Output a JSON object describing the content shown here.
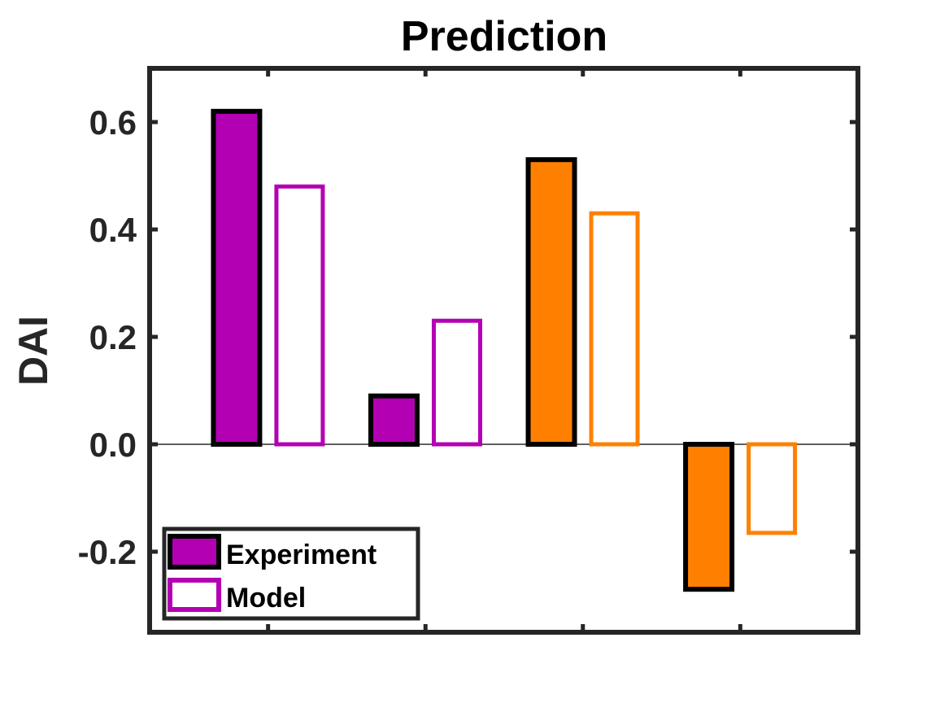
{
  "chart_data": {
    "type": "bar",
    "title": "Prediction",
    "xlabel": "",
    "ylabel": "DAI",
    "ylim": [
      -0.35,
      0.7
    ],
    "yticks": [
      -0.2,
      0.0,
      0.2,
      0.4,
      0.6
    ],
    "ytick_labels": [
      "-0.2",
      "0.0",
      "0.2",
      "0.4",
      "0.6"
    ],
    "xtick_count": 4,
    "grid": false,
    "legend": {
      "placement": "bottom-left",
      "entries": [
        {
          "name": "Experiment",
          "style": "filled"
        },
        {
          "name": "Model",
          "style": "outline"
        }
      ]
    },
    "series": [
      {
        "name": "Experiment",
        "values": [
          0.62,
          0.09,
          0.53,
          -0.27
        ]
      },
      {
        "name": "Model",
        "values": [
          0.48,
          0.23,
          0.43,
          -0.165
        ]
      }
    ],
    "group_colors": [
      "#b300b3",
      "#b300b3",
      "#ff8000",
      "#ff8000"
    ],
    "experiment_edge_color": "#000000"
  }
}
